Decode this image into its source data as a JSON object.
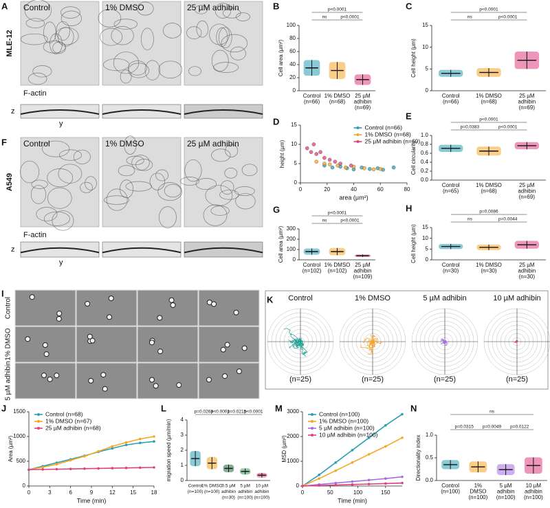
{
  "figure": {
    "panels": {
      "A": {
        "label": "A",
        "cell_line": "MLE-12",
        "conditions": [
          "Control",
          "1% DMSO",
          "25 µM adhibin"
        ],
        "stain": "F-actin",
        "z": "z",
        "y": "y"
      },
      "F": {
        "label": "F",
        "cell_line": "A549",
        "conditions": [
          "Control",
          "1% DMSO",
          "25 µM adhibin"
        ],
        "stain": "F-actin",
        "z": "z",
        "y": "y"
      },
      "I": {
        "label": "I",
        "rows": [
          "Control",
          "1% DMSO",
          "5 µM adhibin"
        ]
      },
      "K": {
        "label": "K",
        "conditions": [
          "Control",
          "1% DMSO",
          "5 µM adhibin",
          "10 µM adhibin"
        ],
        "n": [
          "(n=25)",
          "(n=25)",
          "(n=25)",
          "(n=25)"
        ]
      }
    }
  },
  "chart_data": [
    {
      "type": "dot",
      "panel": "B",
      "ylabel": "Cell area (µm²)",
      "ylim": [
        0,
        100
      ],
      "yticks": [
        0,
        20,
        40,
        60,
        80,
        100
      ],
      "categories": [
        [
          "Control",
          "(n=66)"
        ],
        [
          "1% DMSO",
          "(n=68)"
        ],
        [
          "25 µM",
          "adhibin",
          "(n=69)"
        ]
      ],
      "colors": [
        "#2a9fb5",
        "#f5a623",
        "#e0407f"
      ],
      "means": [
        35,
        31,
        17
      ],
      "sds": [
        12,
        13,
        8
      ],
      "comparisons": [
        {
          "from": 0,
          "to": 1,
          "label": "ns"
        },
        {
          "from": 1,
          "to": 2,
          "label": "p<0.0001"
        },
        {
          "from": 0,
          "to": 2,
          "label": "p<0.0001"
        }
      ]
    },
    {
      "type": "dot",
      "panel": "C",
      "ylabel": "Cell height (µm)",
      "ylim": [
        0,
        15
      ],
      "yticks": [
        0,
        5,
        10,
        15
      ],
      "categories": [
        [
          "Control",
          "(n=66)"
        ],
        [
          "1% DMSO",
          "(n=68)"
        ],
        [
          "25 µM",
          "adhibin",
          "(n=69)"
        ]
      ],
      "colors": [
        "#2a9fb5",
        "#f5a623",
        "#e0407f"
      ],
      "means": [
        4,
        4.2,
        7
      ],
      "sds": [
        0.8,
        1,
        2
      ],
      "comparisons": [
        {
          "from": 0,
          "to": 1,
          "label": "ns"
        },
        {
          "from": 1,
          "to": 2,
          "label": "p<0.0001"
        },
        {
          "from": 0,
          "to": 2,
          "label": "p<0.0001"
        }
      ]
    },
    {
      "type": "scatter",
      "panel": "D",
      "xlabel": "area (µm²)",
      "ylabel": "height (µm)",
      "xlim": [
        0,
        80
      ],
      "xticks": [
        0,
        20,
        40,
        60,
        80
      ],
      "ylim": [
        0,
        15
      ],
      "yticks": [
        0,
        5,
        10,
        15
      ],
      "series": [
        {
          "name": "Control (n=66)",
          "color": "#2a9fb5",
          "x": [
            18,
            24,
            30,
            35,
            40,
            46,
            52,
            58,
            62,
            70
          ],
          "values": [
            4.5,
            4,
            4.2,
            3.8,
            3.5,
            4,
            3.6,
            3.8,
            3.4,
            4
          ]
        },
        {
          "name": "1% DMSO (n=68)",
          "color": "#f5a623",
          "x": [
            12,
            18,
            22,
            28,
            34,
            40,
            48,
            55,
            60
          ],
          "values": [
            5.5,
            5,
            4.8,
            4.5,
            4,
            4.2,
            3.8,
            3.5,
            3.6
          ]
        },
        {
          "name": "25 µM adhibin (n=69)",
          "color": "#e0407f",
          "x": [
            5,
            8,
            10,
            12,
            15,
            18,
            22,
            26,
            30,
            38
          ],
          "values": [
            9,
            8,
            10,
            7.5,
            8,
            6.5,
            6,
            5.5,
            5,
            4.5
          ]
        }
      ]
    },
    {
      "type": "dot",
      "panel": "E",
      "ylabel": "Cell circularity",
      "ylim": [
        0,
        1
      ],
      "yticks": [
        {
          "value": 0,
          "label": "0.0"
        },
        0.2,
        0.4,
        0.6,
        0.8,
        {
          "value": 1,
          "label": "1.0"
        }
      ],
      "categories": [
        [
          "Control",
          "(n=65)"
        ],
        [
          "1% DMSO",
          "(n=68)"
        ],
        [
          "25 µM",
          "adhibin",
          "(n=69)"
        ]
      ],
      "colors": [
        "#2a9fb5",
        "#f5a623",
        "#e0407f"
      ],
      "means": [
        0.71,
        0.65,
        0.77
      ],
      "sds": [
        0.08,
        0.1,
        0.08
      ],
      "comparisons": [
        {
          "from": 0,
          "to": 1,
          "label": "p=0.0383"
        },
        {
          "from": 1,
          "to": 2,
          "label": "p<0.0001"
        },
        {
          "from": 0,
          "to": 2,
          "label": "p<0.0001"
        }
      ]
    },
    {
      "type": "dot",
      "panel": "G",
      "ylabel": "Cell area (µm²)",
      "ylim": [
        0,
        300
      ],
      "yticks": [
        0,
        100,
        200,
        300
      ],
      "categories": [
        [
          "Control",
          "(n=102)"
        ],
        [
          "1% DMSO",
          "(n=102)"
        ],
        [
          "25 µM",
          "adhibin",
          "(n=109)"
        ]
      ],
      "colors": [
        "#2a9fb5",
        "#f5a623",
        "#e0407f"
      ],
      "means": [
        80,
        80,
        40
      ],
      "sds": [
        30,
        35,
        12
      ],
      "comparisons": [
        {
          "from": 0,
          "to": 1,
          "label": "ns"
        },
        {
          "from": 1,
          "to": 2,
          "label": "p<0.0001"
        },
        {
          "from": 0,
          "to": 2,
          "label": "p<0.0001"
        }
      ]
    },
    {
      "type": "dot",
      "panel": "H",
      "ylabel": "Cell height (µm)",
      "ylim": [
        0,
        15
      ],
      "yticks": [
        0,
        5,
        10,
        15
      ],
      "categories": [
        [
          "Control",
          "(n=30)"
        ],
        [
          "1% DMSO",
          "(n=30)"
        ],
        [
          "25 µM",
          "adhibin",
          "(n=30)"
        ]
      ],
      "colors": [
        "#2a9fb5",
        "#f5a623",
        "#e0407f"
      ],
      "means": [
        6.2,
        5.8,
        7
      ],
      "sds": [
        1.2,
        1.3,
        1.8
      ],
      "comparisons": [
        {
          "from": 0,
          "to": 1,
          "label": "ns"
        },
        {
          "from": 1,
          "to": 2,
          "label": "p=0.0044"
        },
        {
          "from": 0,
          "to": 2,
          "label": "p=0.0086"
        }
      ]
    },
    {
      "type": "line",
      "panel": "J",
      "xlabel": "Time (min)",
      "ylabel": "Area (µm²)",
      "xlim": [
        0,
        18
      ],
      "xticks": [
        0,
        3,
        6,
        9,
        12,
        15,
        18
      ],
      "ylim": [
        0,
        1500
      ],
      "yticks": [
        0,
        500,
        1000,
        1500
      ],
      "series": [
        {
          "name": "Control (n=68)",
          "color": "#2a9fb5",
          "x": [
            0,
            2,
            4,
            6,
            8,
            10,
            12,
            14,
            16,
            18
          ],
          "values": [
            330,
            400,
            470,
            540,
            610,
            690,
            760,
            830,
            870,
            900
          ]
        },
        {
          "name": "1% DMSO (n=67)",
          "color": "#f5a623",
          "x": [
            0,
            2,
            4,
            6,
            8,
            10,
            12,
            14,
            16,
            18
          ],
          "values": [
            330,
            380,
            440,
            520,
            600,
            700,
            800,
            880,
            950,
            1000
          ]
        },
        {
          "name": "25 µM adhibin (n=68)",
          "color": "#e0407f",
          "x": [
            0,
            2,
            4,
            6,
            8,
            10,
            12,
            14,
            16,
            18
          ],
          "values": [
            330,
            335,
            340,
            345,
            350,
            355,
            360,
            365,
            370,
            375
          ]
        }
      ]
    },
    {
      "type": "dot",
      "panel": "L",
      "ylabel": "migration speed (µm/min)",
      "ylim": [
        0,
        4
      ],
      "yticks": [
        0,
        1,
        2,
        3,
        4
      ],
      "categories": [
        [
          "Control",
          "(n=100)"
        ],
        [
          "1% DMSO",
          "(n=100)"
        ],
        [
          "0.5 µM",
          "adhibin",
          "(n=30)"
        ],
        [
          "5 µM",
          "adhibin",
          "(n=100)"
        ],
        [
          "10 µM",
          "adhibin",
          "(n=100)"
        ]
      ],
      "colors": [
        "#2a9fb5",
        "#f5a623",
        "#1f6b3a",
        "#3a9a5a",
        "#e0407f"
      ],
      "means": [
        1.45,
        1.15,
        0.8,
        0.6,
        0.35
      ],
      "sds": [
        0.5,
        0.4,
        0.25,
        0.2,
        0.15
      ],
      "comparisons": [
        {
          "from": 0,
          "to": 1,
          "label": "p=0.0263"
        },
        {
          "from": 1,
          "to": 2,
          "label": "p<0.0001"
        },
        {
          "from": 2,
          "to": 3,
          "label": "p=0.0215"
        },
        {
          "from": 3,
          "to": 4,
          "label": "p<0.0001"
        }
      ]
    },
    {
      "type": "line",
      "panel": "M",
      "xlabel": "Time (min)",
      "ylabel": "MSD (µm²)",
      "xlim": [
        0,
        180
      ],
      "xticks": [
        0,
        50,
        100,
        150
      ],
      "ylim": [
        0,
        3000
      ],
      "yticks": [
        0,
        1000,
        2000,
        3000
      ],
      "series": [
        {
          "name": "Control (n=100)",
          "color": "#2a9fb5",
          "x": [
            0,
            30,
            60,
            90,
            120,
            150,
            180
          ],
          "values": [
            0,
            450,
            950,
            1450,
            1950,
            2450,
            2900
          ]
        },
        {
          "name": "1% DMSO (n=100)",
          "color": "#f5a623",
          "x": [
            0,
            30,
            60,
            90,
            120,
            150,
            180
          ],
          "values": [
            0,
            300,
            620,
            950,
            1280,
            1600,
            1950
          ]
        },
        {
          "name": "5 µM adhibin (n=100)",
          "color": "#a56de2",
          "x": [
            0,
            30,
            60,
            90,
            120,
            150,
            180
          ],
          "values": [
            0,
            60,
            120,
            180,
            240,
            300,
            370
          ]
        },
        {
          "name": "10 µM adhibin (n=100)",
          "color": "#e0407f",
          "x": [
            0,
            30,
            60,
            90,
            120,
            150,
            180
          ],
          "values": [
            0,
            20,
            40,
            60,
            80,
            100,
            120
          ]
        }
      ]
    },
    {
      "type": "dot",
      "panel": "N",
      "ylabel": "Directionality index",
      "ylim": [
        0,
        1
      ],
      "yticks": [
        {
          "value": 0,
          "label": "0.0"
        },
        0.5,
        {
          "value": 1,
          "label": "1.0"
        }
      ],
      "categories": [
        [
          "Control",
          "(n=100)"
        ],
        [
          "1%",
          "DMSO",
          "(n=100)"
        ],
        [
          "5 µM",
          "adhibin",
          "(n=100)"
        ],
        [
          "10 µM",
          "adhibin",
          "(n=100)"
        ]
      ],
      "colors": [
        "#2a9fb5",
        "#f5a623",
        "#a56de2",
        "#e0407f"
      ],
      "means": [
        0.35,
        0.3,
        0.24,
        0.33
      ],
      "sds": [
        0.1,
        0.12,
        0.12,
        0.18
      ],
      "comparisons": [
        {
          "from": 0,
          "to": 1,
          "label": "p=0.0315"
        },
        {
          "from": 1,
          "to": 2,
          "label": "p=0.0049"
        },
        {
          "from": 2,
          "to": 3,
          "label": "p=0.0122"
        },
        {
          "from": 0,
          "to": 3,
          "label": "ns"
        }
      ]
    }
  ]
}
